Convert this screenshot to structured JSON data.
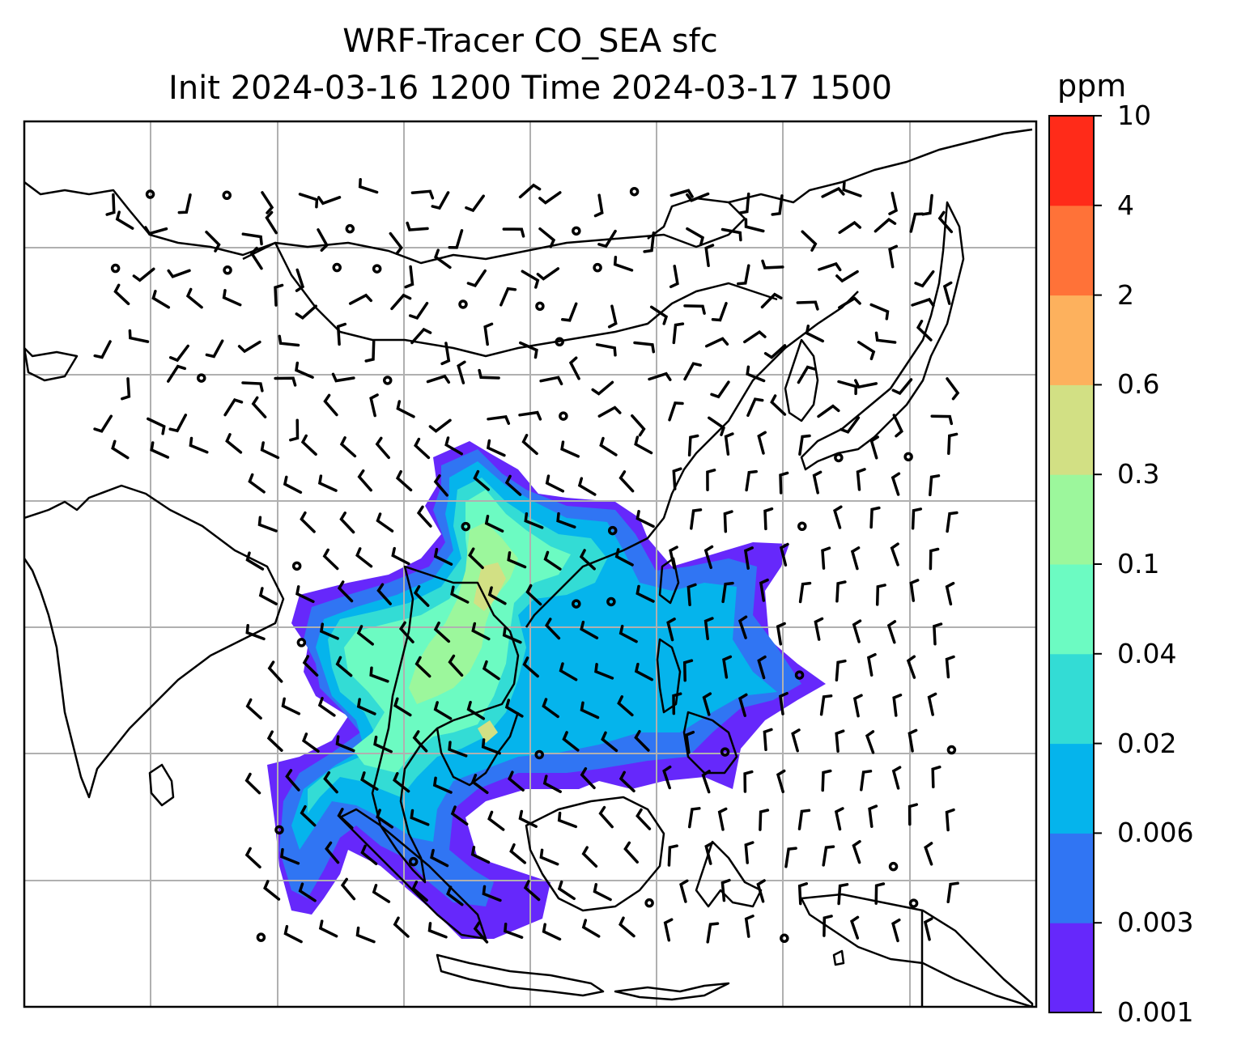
{
  "title": {
    "line1": "WRF-Tracer CO_SEA sfc",
    "line2": "Init 2024-03-16 1200 Time 2024-03-17 1500"
  },
  "colorbar": {
    "unit": "ppm",
    "levels": [
      "0.001",
      "0.003",
      "0.006",
      "0.02",
      "0.04",
      "0.1",
      "0.3",
      "0.6",
      "2",
      "4",
      "10"
    ],
    "colors": [
      "#6628fb",
      "#3075f3",
      "#05b4ec",
      "#33dcd5",
      "#6cfbc2",
      "#9cf79c",
      "#d2e084",
      "#fdb15d",
      "#ff7238",
      "#ff2b19"
    ]
  },
  "map": {
    "coastline_color": "#000000",
    "grid_color": "#b0b0b0",
    "barb_color": "#000000"
  }
}
